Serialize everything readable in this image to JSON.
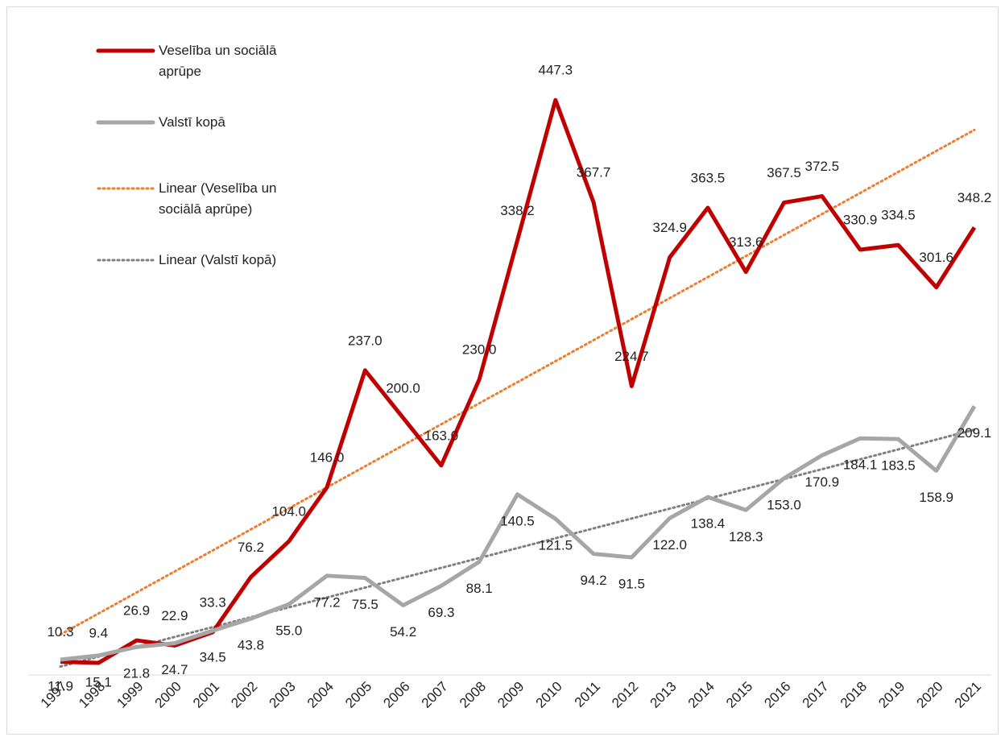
{
  "chart_data": {
    "type": "line",
    "categories": [
      "1997",
      "1998",
      "1999",
      "2000",
      "2001",
      "2002",
      "2003",
      "2004",
      "2005",
      "2006",
      "2007",
      "2008",
      "2009",
      "2010",
      "2011",
      "2012",
      "2013",
      "2014",
      "2015",
      "2016",
      "2017",
      "2018",
      "2019",
      "2020",
      "2021"
    ],
    "ylim": [
      0,
      470
    ],
    "series": [
      {
        "name": "Veselība un sociālā aprūpe",
        "color": "#c00000",
        "values": [
          10.3,
          9.4,
          26.9,
          22.9,
          33.3,
          76.2,
          104.0,
          146.0,
          237.0,
          200.0,
          163.0,
          230.0,
          338.2,
          447.3,
          367.7,
          224.7,
          324.9,
          363.5,
          313.6,
          367.5,
          372.5,
          330.9,
          334.5,
          301.6,
          348.2
        ],
        "value_labels": [
          "10.3",
          "9.4",
          "26.9",
          "22.9",
          "33.3",
          "76.2",
          "104.0",
          "146.0",
          "237.0",
          "200.0",
          "163.0",
          "230.0",
          "338.2",
          "447.3",
          "367.7",
          "224.7",
          "324.9",
          "363.5",
          "313.6",
          "367.5",
          "372.5",
          "330.9",
          "334.5",
          "301.6",
          "348.2"
        ],
        "trendline": {
          "name": "Linear (Veselība un sociālā aprūpe)",
          "color": "#ed7d31"
        }
      },
      {
        "name": "Valstī kopā",
        "color": "#a6a6a6",
        "values": [
          11.9,
          15.1,
          21.8,
          24.7,
          34.5,
          43.8,
          55.0,
          77.2,
          75.5,
          54.2,
          69.3,
          88.1,
          140.5,
          121.5,
          94.2,
          91.5,
          122.0,
          138.4,
          128.3,
          153.0,
          170.9,
          184.1,
          183.5,
          158.9,
          209.1
        ],
        "value_labels": [
          "11.9",
          "15.1",
          "21.8",
          "24.7",
          "34.5",
          "43.8",
          "55.0",
          "77.2",
          "75.5",
          "54.2",
          "69.3",
          "88.1",
          "140.5",
          "121.5",
          "94.2",
          "91.5",
          "122.0",
          "138.4",
          "128.3",
          "153.0",
          "170.9",
          "184.1",
          "183.5",
          "158.9",
          "209.1"
        ],
        "trendline": {
          "name": "Linear (Valstī kopā)",
          "color": "#7f7f7f"
        }
      }
    ],
    "legend": "top-left"
  }
}
